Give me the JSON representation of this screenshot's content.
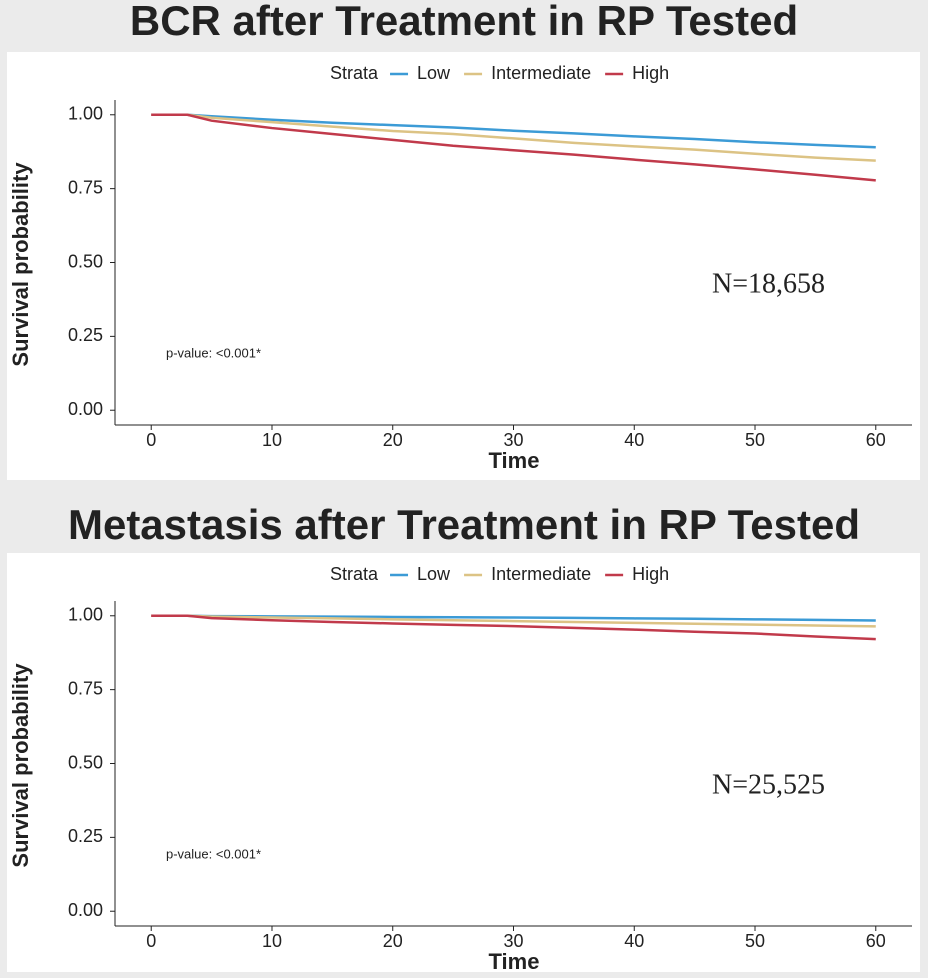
{
  "chart_data": [
    {
      "type": "line",
      "title": "BCR after Treatment in RP Tested",
      "legend_title": "Strata",
      "xlabel": "Time",
      "ylabel": "Survival probability",
      "annotations": [
        "p-value: <0.001*",
        "N=18,658"
      ],
      "x": [
        0,
        3,
        5,
        10,
        15,
        20,
        25,
        30,
        35,
        40,
        45,
        50,
        55,
        60
      ],
      "series": [
        {
          "name": "Low",
          "color": "#3c9bd6",
          "values": [
            1,
            1,
            0.995,
            0.983,
            0.973,
            0.965,
            0.957,
            0.946,
            0.937,
            0.927,
            0.918,
            0.907,
            0.898,
            0.89
          ]
        },
        {
          "name": "Intermediate",
          "color": "#dcc385",
          "values": [
            1,
            1,
            0.99,
            0.975,
            0.96,
            0.945,
            0.935,
            0.92,
            0.905,
            0.893,
            0.882,
            0.868,
            0.855,
            0.845
          ]
        },
        {
          "name": "High",
          "color": "#c13a4b",
          "values": [
            1,
            1,
            0.98,
            0.955,
            0.935,
            0.915,
            0.895,
            0.88,
            0.865,
            0.848,
            0.832,
            0.815,
            0.797,
            0.778
          ]
        }
      ],
      "xlim": [
        -3,
        63
      ],
      "xticks": [
        0,
        10,
        20,
        30,
        40,
        50,
        60
      ],
      "ylim": [
        -0.05,
        1.05
      ],
      "yticks": [
        {
          "value": 0,
          "label": "0.00"
        },
        {
          "value": 0.25,
          "label": "0.25"
        },
        {
          "value": 0.5,
          "label": "0.50"
        },
        {
          "value": 0.75,
          "label": "0.75"
        },
        {
          "value": 1,
          "label": "1.00"
        }
      ]
    },
    {
      "type": "line",
      "title": "Metastasis after Treatment in RP Tested",
      "legend_title": "Strata",
      "xlabel": "Time",
      "ylabel": "Survival probability",
      "annotations": [
        "p-value: <0.001*",
        "N=25,525"
      ],
      "x": [
        0,
        3,
        5,
        10,
        15,
        20,
        25,
        30,
        35,
        40,
        45,
        50,
        55,
        60
      ],
      "series": [
        {
          "name": "Low",
          "color": "#3c9bd6",
          "values": [
            1,
            1,
            0.999,
            0.998,
            0.997,
            0.996,
            0.995,
            0.994,
            0.993,
            0.991,
            0.99,
            0.988,
            0.986,
            0.984
          ]
        },
        {
          "name": "Intermediate",
          "color": "#dcc385",
          "values": [
            1,
            1,
            0.997,
            0.994,
            0.991,
            0.988,
            0.985,
            0.982,
            0.979,
            0.976,
            0.973,
            0.97,
            0.967,
            0.964
          ]
        },
        {
          "name": "High",
          "color": "#c13a4b",
          "values": [
            1,
            1,
            0.992,
            0.985,
            0.979,
            0.974,
            0.969,
            0.965,
            0.959,
            0.953,
            0.946,
            0.94,
            0.93,
            0.921
          ]
        }
      ],
      "xlim": [
        -3,
        63
      ],
      "xticks": [
        0,
        10,
        20,
        30,
        40,
        50,
        60
      ],
      "ylim": [
        -0.05,
        1.05
      ],
      "yticks": [
        {
          "value": 0,
          "label": "0.00"
        },
        {
          "value": 0.25,
          "label": "0.25"
        },
        {
          "value": 0.5,
          "label": "0.50"
        },
        {
          "value": 0.75,
          "label": "0.75"
        },
        {
          "value": 1,
          "label": "1.00"
        }
      ]
    }
  ]
}
